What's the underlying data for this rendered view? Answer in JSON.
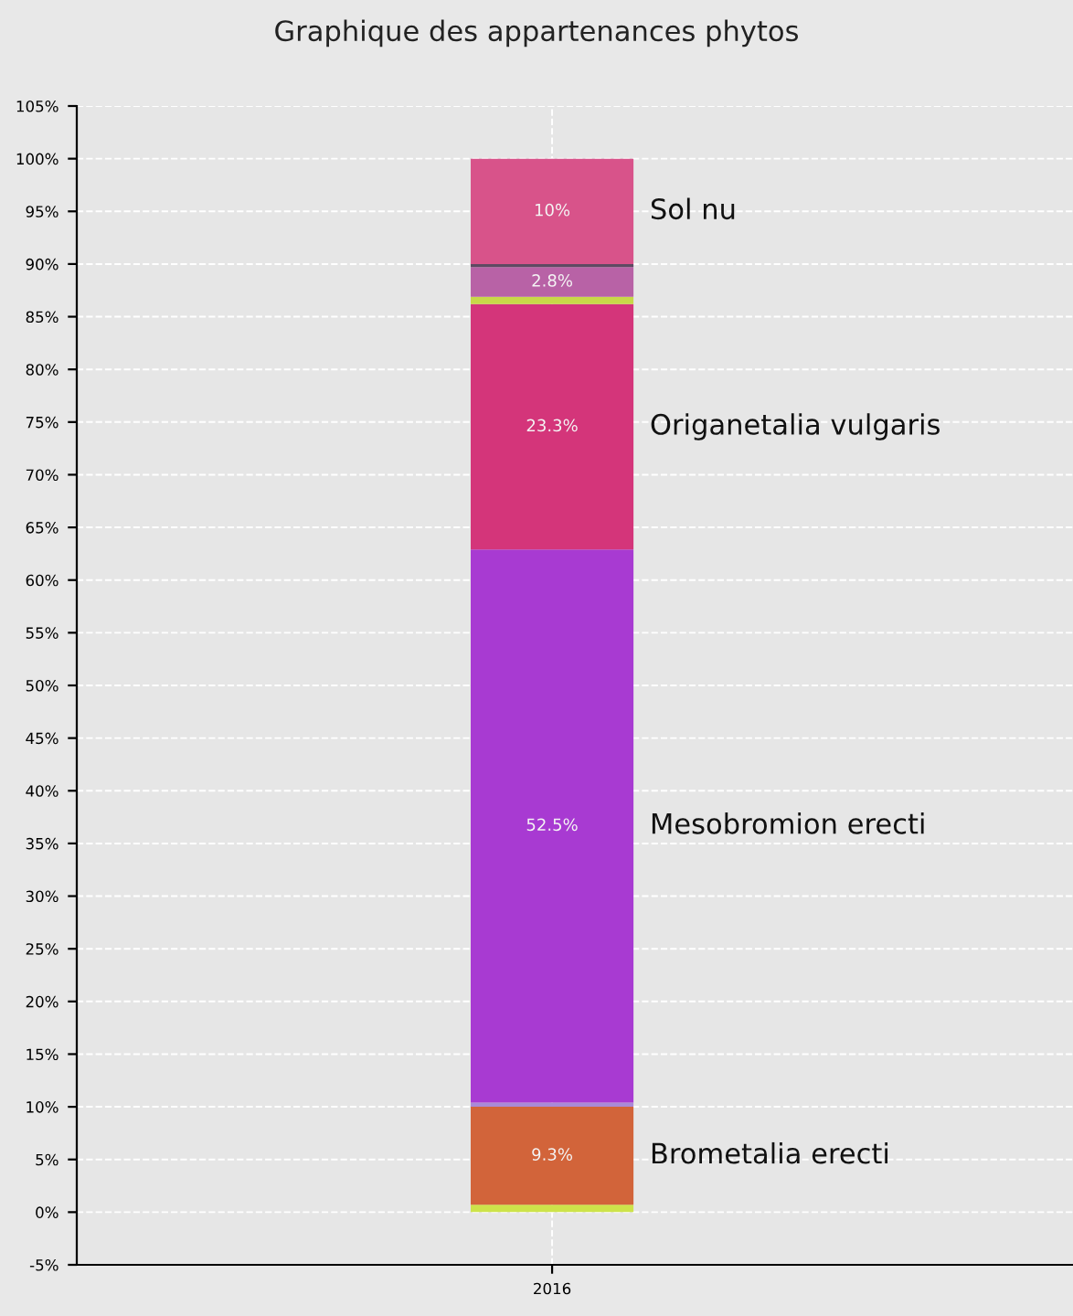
{
  "chart_data": {
    "type": "bar",
    "stacked": true,
    "title": "Graphique des appartenances phytos",
    "categories": [
      "2016"
    ],
    "series": [
      {
        "color": "#cde34a",
        "values": [
          0.7
        ]
      },
      {
        "name": "Brometalia erecti",
        "color": "#d2643a",
        "values": [
          9.3
        ],
        "value_labels": [
          "9.3%"
        ]
      },
      {
        "color": "#a98ad8",
        "values": [
          0.4
        ]
      },
      {
        "name": "Mesobromion erecti",
        "color": "#a83ad2",
        "values": [
          52.5
        ],
        "value_labels": [
          "52.5%"
        ]
      },
      {
        "name": "Origanetalia vulgaris",
        "color": "#d4357a",
        "values": [
          23.3
        ],
        "value_labels": [
          "23.3%"
        ]
      },
      {
        "color": "#c8d848",
        "values": [
          0.7
        ]
      },
      {
        "color": "#b862a6",
        "values": [
          2.8
        ],
        "value_labels": [
          "2.8%"
        ]
      },
      {
        "color": "#5e4a62",
        "values": [
          0.3
        ]
      },
      {
        "name": "Sol nu",
        "color": "#d8538a",
        "values": [
          10
        ],
        "value_labels": [
          "10%"
        ]
      }
    ],
    "ylim": [
      -5,
      105
    ],
    "yticks": [
      {
        "value": -5,
        "label": "-5%"
      },
      {
        "value": 0,
        "label": "0%"
      },
      {
        "value": 5,
        "label": "5%"
      },
      {
        "value": 10,
        "label": "10%"
      },
      {
        "value": 15,
        "label": "15%"
      },
      {
        "value": 20,
        "label": "20%"
      },
      {
        "value": 25,
        "label": "25%"
      },
      {
        "value": 30,
        "label": "30%"
      },
      {
        "value": 35,
        "label": "35%"
      },
      {
        "value": 40,
        "label": "40%"
      },
      {
        "value": 45,
        "label": "45%"
      },
      {
        "value": 50,
        "label": "50%"
      },
      {
        "value": 55,
        "label": "55%"
      },
      {
        "value": 60,
        "label": "60%"
      },
      {
        "value": 65,
        "label": "65%"
      },
      {
        "value": 70,
        "label": "70%"
      },
      {
        "value": 75,
        "label": "75%"
      },
      {
        "value": 80,
        "label": "80%"
      },
      {
        "value": 85,
        "label": "85%"
      },
      {
        "value": 90,
        "label": "90%"
      },
      {
        "value": 95,
        "label": "95%"
      },
      {
        "value": 100,
        "label": "100%"
      },
      {
        "value": 105,
        "label": "105%"
      }
    ],
    "grid": true,
    "legend": false
  }
}
